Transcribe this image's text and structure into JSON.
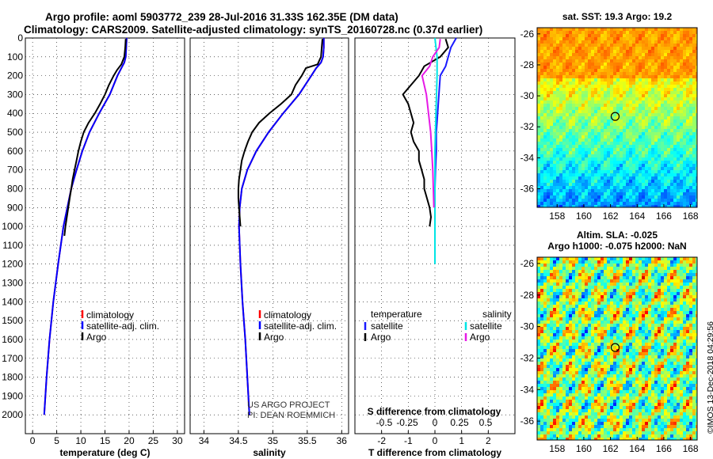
{
  "title_line1": "Argo profile: aoml 5903772_239 28-Jul-2016 31.33S 162.35E (DM data)",
  "title_line2": "Climatology: CARS2009. Satellite-adjusted climatology: synTS_20160728.nc (0.37d earlier)",
  "credit": "©IMOS 13-Dec-2018 04:29:56",
  "colors": {
    "climatology": "#ff0000",
    "satellite": "#0000ff",
    "argo": "#000000",
    "t_satellite": "#1a1aff",
    "s_satellite": "#00e5e5",
    "s_argo": "#e61ae6"
  },
  "chart_data": [
    {
      "id": "temperature",
      "type": "line",
      "xlabel": "temperature (deg C)",
      "ylabel": "",
      "xlim": [
        -1.5,
        31.5
      ],
      "ylim": [
        2100,
        0
      ],
      "xticks": [
        0,
        5,
        10,
        15,
        20,
        25,
        30
      ],
      "yticks": [
        0,
        100,
        200,
        300,
        400,
        500,
        600,
        700,
        800,
        900,
        1000,
        1100,
        1200,
        1300,
        1400,
        1500,
        1600,
        1700,
        1800,
        1900,
        2000
      ],
      "grid": true,
      "legend": {
        "position": "bottom-center",
        "entries": [
          "climatology",
          "satellite-adj. clim.",
          "Argo"
        ]
      },
      "series": [
        {
          "name": "climatology",
          "color": "climatology",
          "depth": [
            0,
            50,
            100,
            130,
            160,
            200,
            300,
            400,
            500,
            600,
            700,
            800,
            900,
            1000,
            1200,
            1400,
            1600,
            1800,
            2000
          ],
          "values": [
            19.5,
            19.4,
            19.3,
            19.0,
            18.4,
            17.6,
            16.0,
            13.8,
            11.8,
            10.3,
            9.1,
            8.0,
            7.2,
            6.4,
            5.3,
            4.3,
            3.5,
            2.9,
            2.4
          ]
        },
        {
          "name": "satellite-adj. clim.",
          "color": "satellite",
          "depth": [
            0,
            50,
            100,
            130,
            160,
            200,
            300,
            400,
            500,
            600,
            700,
            800,
            900,
            1000,
            1200,
            1400,
            1600,
            1800,
            2000
          ],
          "values": [
            19.5,
            19.4,
            19.3,
            19.0,
            18.4,
            17.6,
            16.0,
            13.8,
            11.8,
            10.3,
            9.1,
            8.0,
            7.2,
            6.4,
            5.3,
            4.3,
            3.5,
            2.9,
            2.4
          ]
        },
        {
          "name": "Argo",
          "color": "argo",
          "depth": [
            5,
            50,
            100,
            140,
            170,
            200,
            250,
            300,
            350,
            400,
            450,
            500,
            550,
            600,
            650,
            700,
            750,
            800,
            850,
            900,
            950,
            1000,
            1050
          ],
          "values": [
            19.3,
            19.2,
            19.0,
            18.4,
            17.5,
            16.8,
            15.8,
            15.0,
            14.0,
            12.9,
            11.6,
            10.6,
            10.0,
            9.5,
            9.1,
            8.7,
            8.3,
            8.0,
            7.7,
            7.4,
            7.1,
            6.8,
            6.6
          ]
        }
      ]
    },
    {
      "id": "salinity",
      "type": "line",
      "xlabel": "salinity",
      "ylabel": "",
      "xlim": [
        33.8,
        36.1
      ],
      "ylim": [
        2100,
        0
      ],
      "xticks": [
        34,
        34.5,
        35,
        35.5,
        36
      ],
      "xtick_labels": [
        "34",
        "34.5",
        "35",
        "35.5",
        "36"
      ],
      "grid": true,
      "legend": {
        "position": "bottom-center",
        "entries": [
          "climatology",
          "satellite-adj. clim.",
          "Argo"
        ]
      },
      "annotation": [
        "US ARGO PROJECT",
        "PI: DEAN ROEMMICH"
      ],
      "series": [
        {
          "name": "climatology",
          "color": "climatology",
          "depth": [
            0,
            50,
            100,
            130,
            160,
            200,
            300,
            400,
            500,
            600,
            700,
            800,
            900,
            1000,
            1200,
            1400,
            1600,
            1800,
            2000
          ],
          "values": [
            35.74,
            35.74,
            35.73,
            35.7,
            35.63,
            35.56,
            35.38,
            35.15,
            34.94,
            34.76,
            34.63,
            34.55,
            34.52,
            34.51,
            34.53,
            34.56,
            34.6,
            34.63,
            34.66
          ]
        },
        {
          "name": "satellite-adj. clim.",
          "color": "satellite",
          "depth": [
            0,
            50,
            100,
            130,
            160,
            200,
            300,
            400,
            500,
            600,
            700,
            800,
            900,
            1000,
            1200,
            1400,
            1600,
            1800,
            2000
          ],
          "values": [
            35.74,
            35.74,
            35.73,
            35.7,
            35.63,
            35.56,
            35.38,
            35.15,
            34.94,
            34.76,
            34.63,
            34.55,
            34.52,
            34.51,
            34.53,
            34.56,
            34.6,
            34.63,
            34.66
          ]
        },
        {
          "name": "Argo",
          "color": "argo",
          "depth": [
            5,
            50,
            100,
            140,
            160,
            200,
            250,
            300,
            350,
            400,
            450,
            500,
            550,
            600,
            650,
            700,
            750,
            800,
            850,
            900,
            950,
            1000
          ],
          "values": [
            35.72,
            35.71,
            35.7,
            35.65,
            35.48,
            35.42,
            35.33,
            35.27,
            35.12,
            34.95,
            34.8,
            34.7,
            34.64,
            34.59,
            34.55,
            34.53,
            34.51,
            34.5,
            34.5,
            34.51,
            34.52,
            34.53
          ]
        }
      ]
    },
    {
      "id": "difference",
      "type": "line",
      "xlabel": "T difference from climatology",
      "ylabel": "",
      "xlim": [
        -3,
        3
      ],
      "ylim": [
        2100,
        0
      ],
      "xticks": [
        -2,
        -1,
        0,
        1,
        2
      ],
      "top_axis_label": "S difference from climatology",
      "top_ticks": [
        "-0.5",
        "-0.25",
        "0",
        "0.25",
        "0.5"
      ],
      "grid": true,
      "legend_temperature": {
        "title": "temperature",
        "entries": [
          "satellite",
          "Argo"
        ]
      },
      "legend_salinity": {
        "title": "salinity",
        "entries": [
          "satellite",
          "Argo"
        ]
      },
      "series": [
        {
          "name": "T satellite",
          "color": "t_satellite",
          "depth": [
            0,
            50,
            100,
            150,
            200,
            300,
            400,
            500,
            600,
            700,
            800,
            900,
            1000
          ],
          "values": [
            0.8,
            0.6,
            0.5,
            0.4,
            0.2,
            0.15,
            0.1,
            0.05,
            0.05,
            0.02,
            0.0,
            0.0,
            0.0
          ]
        },
        {
          "name": "T Argo",
          "color": "argo",
          "depth": [
            5,
            50,
            100,
            150,
            200,
            250,
            300,
            350,
            400,
            450,
            500,
            550,
            600,
            650,
            700,
            750,
            800,
            850,
            900,
            950,
            1000
          ],
          "values": [
            0.4,
            0.5,
            0.2,
            -0.4,
            -0.6,
            -0.9,
            -1.2,
            -1.0,
            -0.9,
            -0.8,
            -0.9,
            -0.8,
            -0.6,
            -0.6,
            -0.5,
            -0.4,
            -0.4,
            -0.3,
            -0.2,
            -0.15,
            -0.2
          ]
        },
        {
          "name": "S satellite",
          "color": "s_satellite",
          "depth": [
            0,
            100,
            200,
            400,
            600,
            800,
            1000,
            1200
          ],
          "values": [
            0.0,
            0.02,
            0.02,
            0.01,
            0.0,
            0.0,
            0.0,
            0.0
          ]
        },
        {
          "name": "S Argo",
          "color": "s_argo",
          "depth": [
            5,
            50,
            100,
            150,
            200,
            250,
            300,
            400,
            500,
            600,
            700,
            800,
            900
          ],
          "values": [
            0.05,
            0.04,
            -0.02,
            -0.05,
            -0.12,
            -0.1,
            -0.08,
            -0.06,
            -0.04,
            -0.03,
            -0.02,
            -0.015,
            -0.01
          ]
        }
      ]
    },
    {
      "id": "sst-map",
      "type": "heatmap",
      "title": "sat. SST: 19.3 Argo: 19.2",
      "xticks": [
        "158",
        "160",
        "162",
        "164",
        "166",
        "168"
      ],
      "yticks": [
        "-26",
        "-28",
        "-30",
        "-32",
        "-34",
        "-36"
      ],
      "xlim": [
        156.5,
        168.5
      ],
      "ylim": [
        -37.2,
        -25.6
      ],
      "marker": {
        "lon": 162.35,
        "lat": -31.33
      }
    },
    {
      "id": "sla-map",
      "type": "heatmap",
      "title_line1": "Altim. SLA: -0.025",
      "title_line2": "Argo h1000: -0.075 h2000: NaN",
      "xticks": [
        "158",
        "160",
        "162",
        "164",
        "166",
        "168"
      ],
      "yticks": [
        "-26",
        "-28",
        "-30",
        "-32",
        "-34",
        "-36"
      ],
      "xlim": [
        156.5,
        168.5
      ],
      "ylim": [
        -37.2,
        -25.6
      ],
      "marker": {
        "lon": 162.35,
        "lat": -31.33
      }
    }
  ]
}
